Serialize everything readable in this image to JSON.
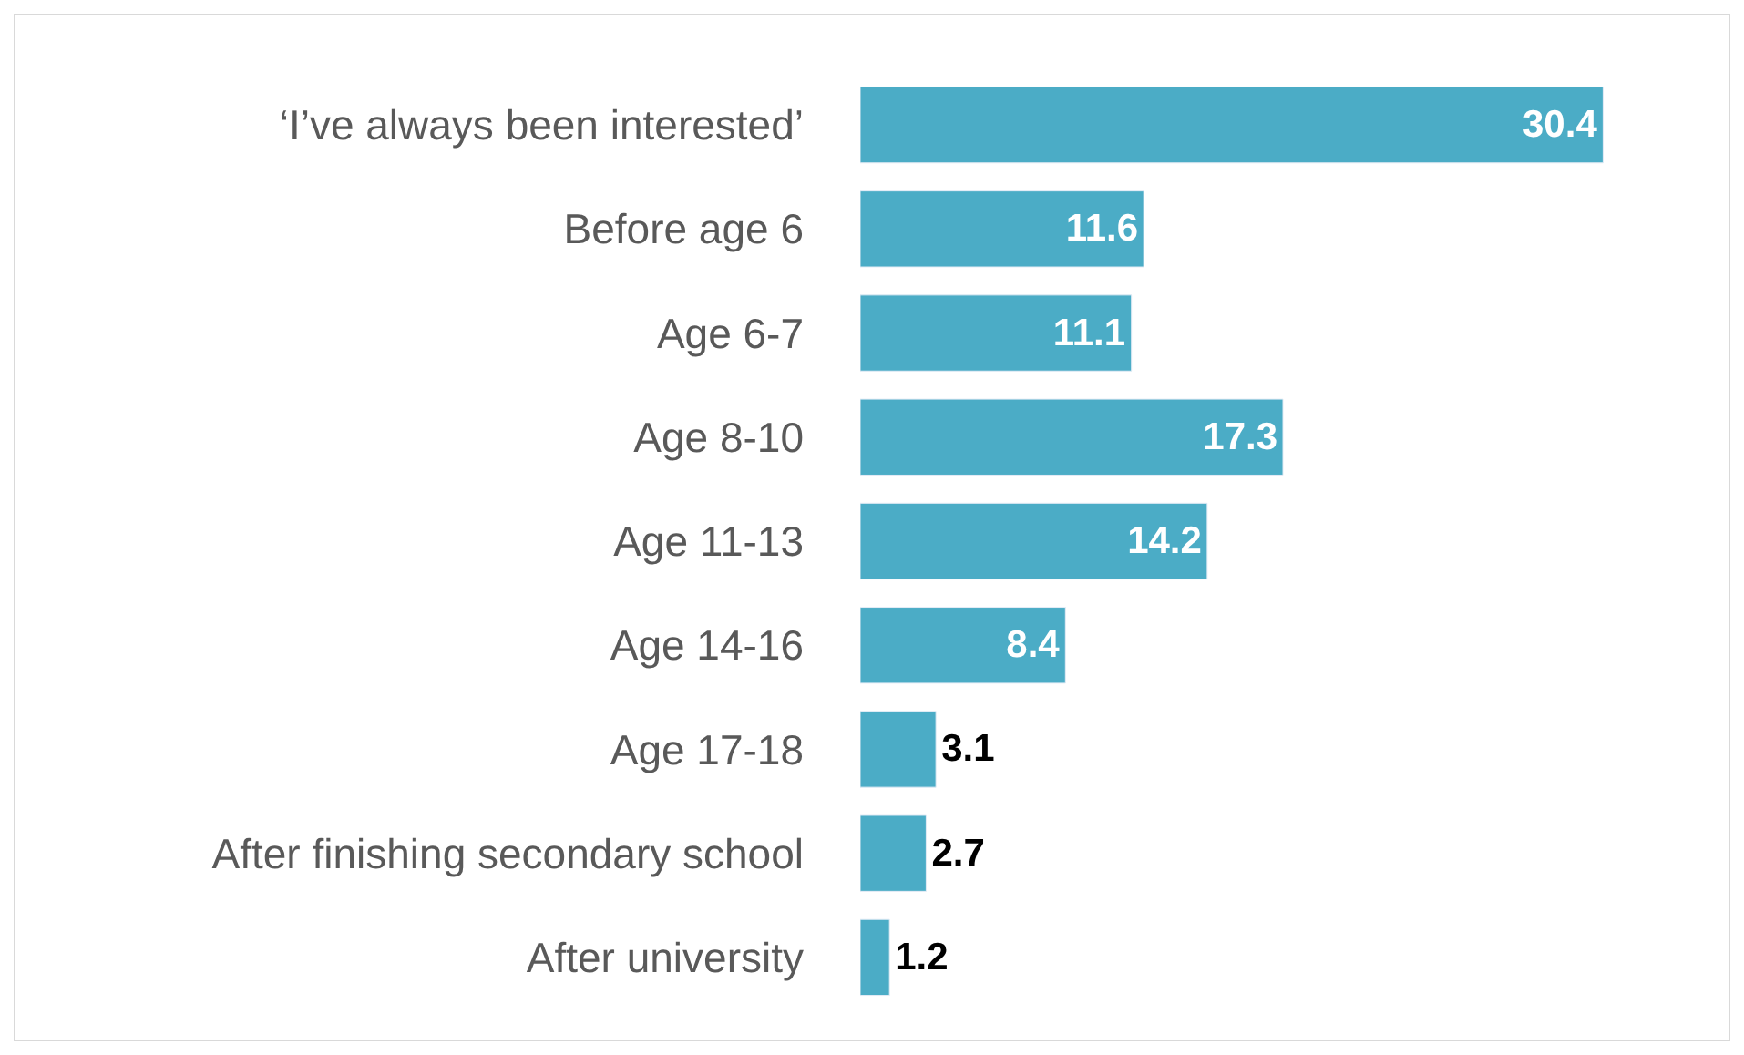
{
  "chart_data": {
    "type": "bar",
    "orientation": "horizontal",
    "categories": [
      "‘I’ve always been interested’",
      "Before age 6",
      "Age 6-7",
      "Age 8-10",
      "Age 11-13",
      "Age 14-16",
      "Age 17-18",
      "After finishing secondary school",
      "After university"
    ],
    "values": [
      30.4,
      11.6,
      11.1,
      17.3,
      14.2,
      8.4,
      3.1,
      2.7,
      1.2
    ],
    "color": "#4bacc6",
    "data_labels": true
  }
}
